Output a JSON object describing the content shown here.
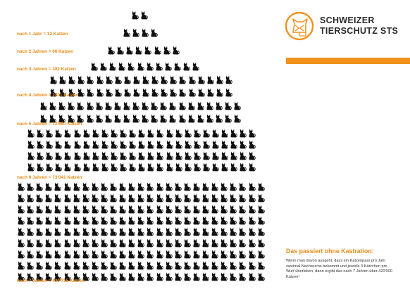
{
  "organization": {
    "name_line1": "SCHWEIZER",
    "name_line2": "TIERSCHUTZ STS",
    "logo_icon": "cat-shield-logo-icon",
    "brand_color": "#f0921a"
  },
  "growth": [
    {
      "label": "nach 1 Jahr = 12 Katzen"
    },
    {
      "label": "nach 2 Jahren = 66 Katzen"
    },
    {
      "label": "nach 3 Jahren = 382 Katzen"
    },
    {
      "label": "nach 4 Jahren = 2201 Katzen"
    },
    {
      "label": "nach 5 Jahren = 12'680 Katzen"
    },
    {
      "label": "nach 6 Jahren = 73'041 Katzen"
    },
    {
      "label": "nach 7 Jahren = 420'715 Katzen"
    }
  ],
  "cat_icon": "cat-silhouette-icon",
  "sidebar": {
    "title": "Das passiert ohne Kastration:",
    "text": "Wenn man davon ausgeht, dass ein Katzenpaar pro Jahr zweimal Nachwuchs bekommt und jeweils 3 Kätzchen pro Wurf überleben, dann ergibt das nach 7 Jahren über 420'000 Katzen!"
  }
}
